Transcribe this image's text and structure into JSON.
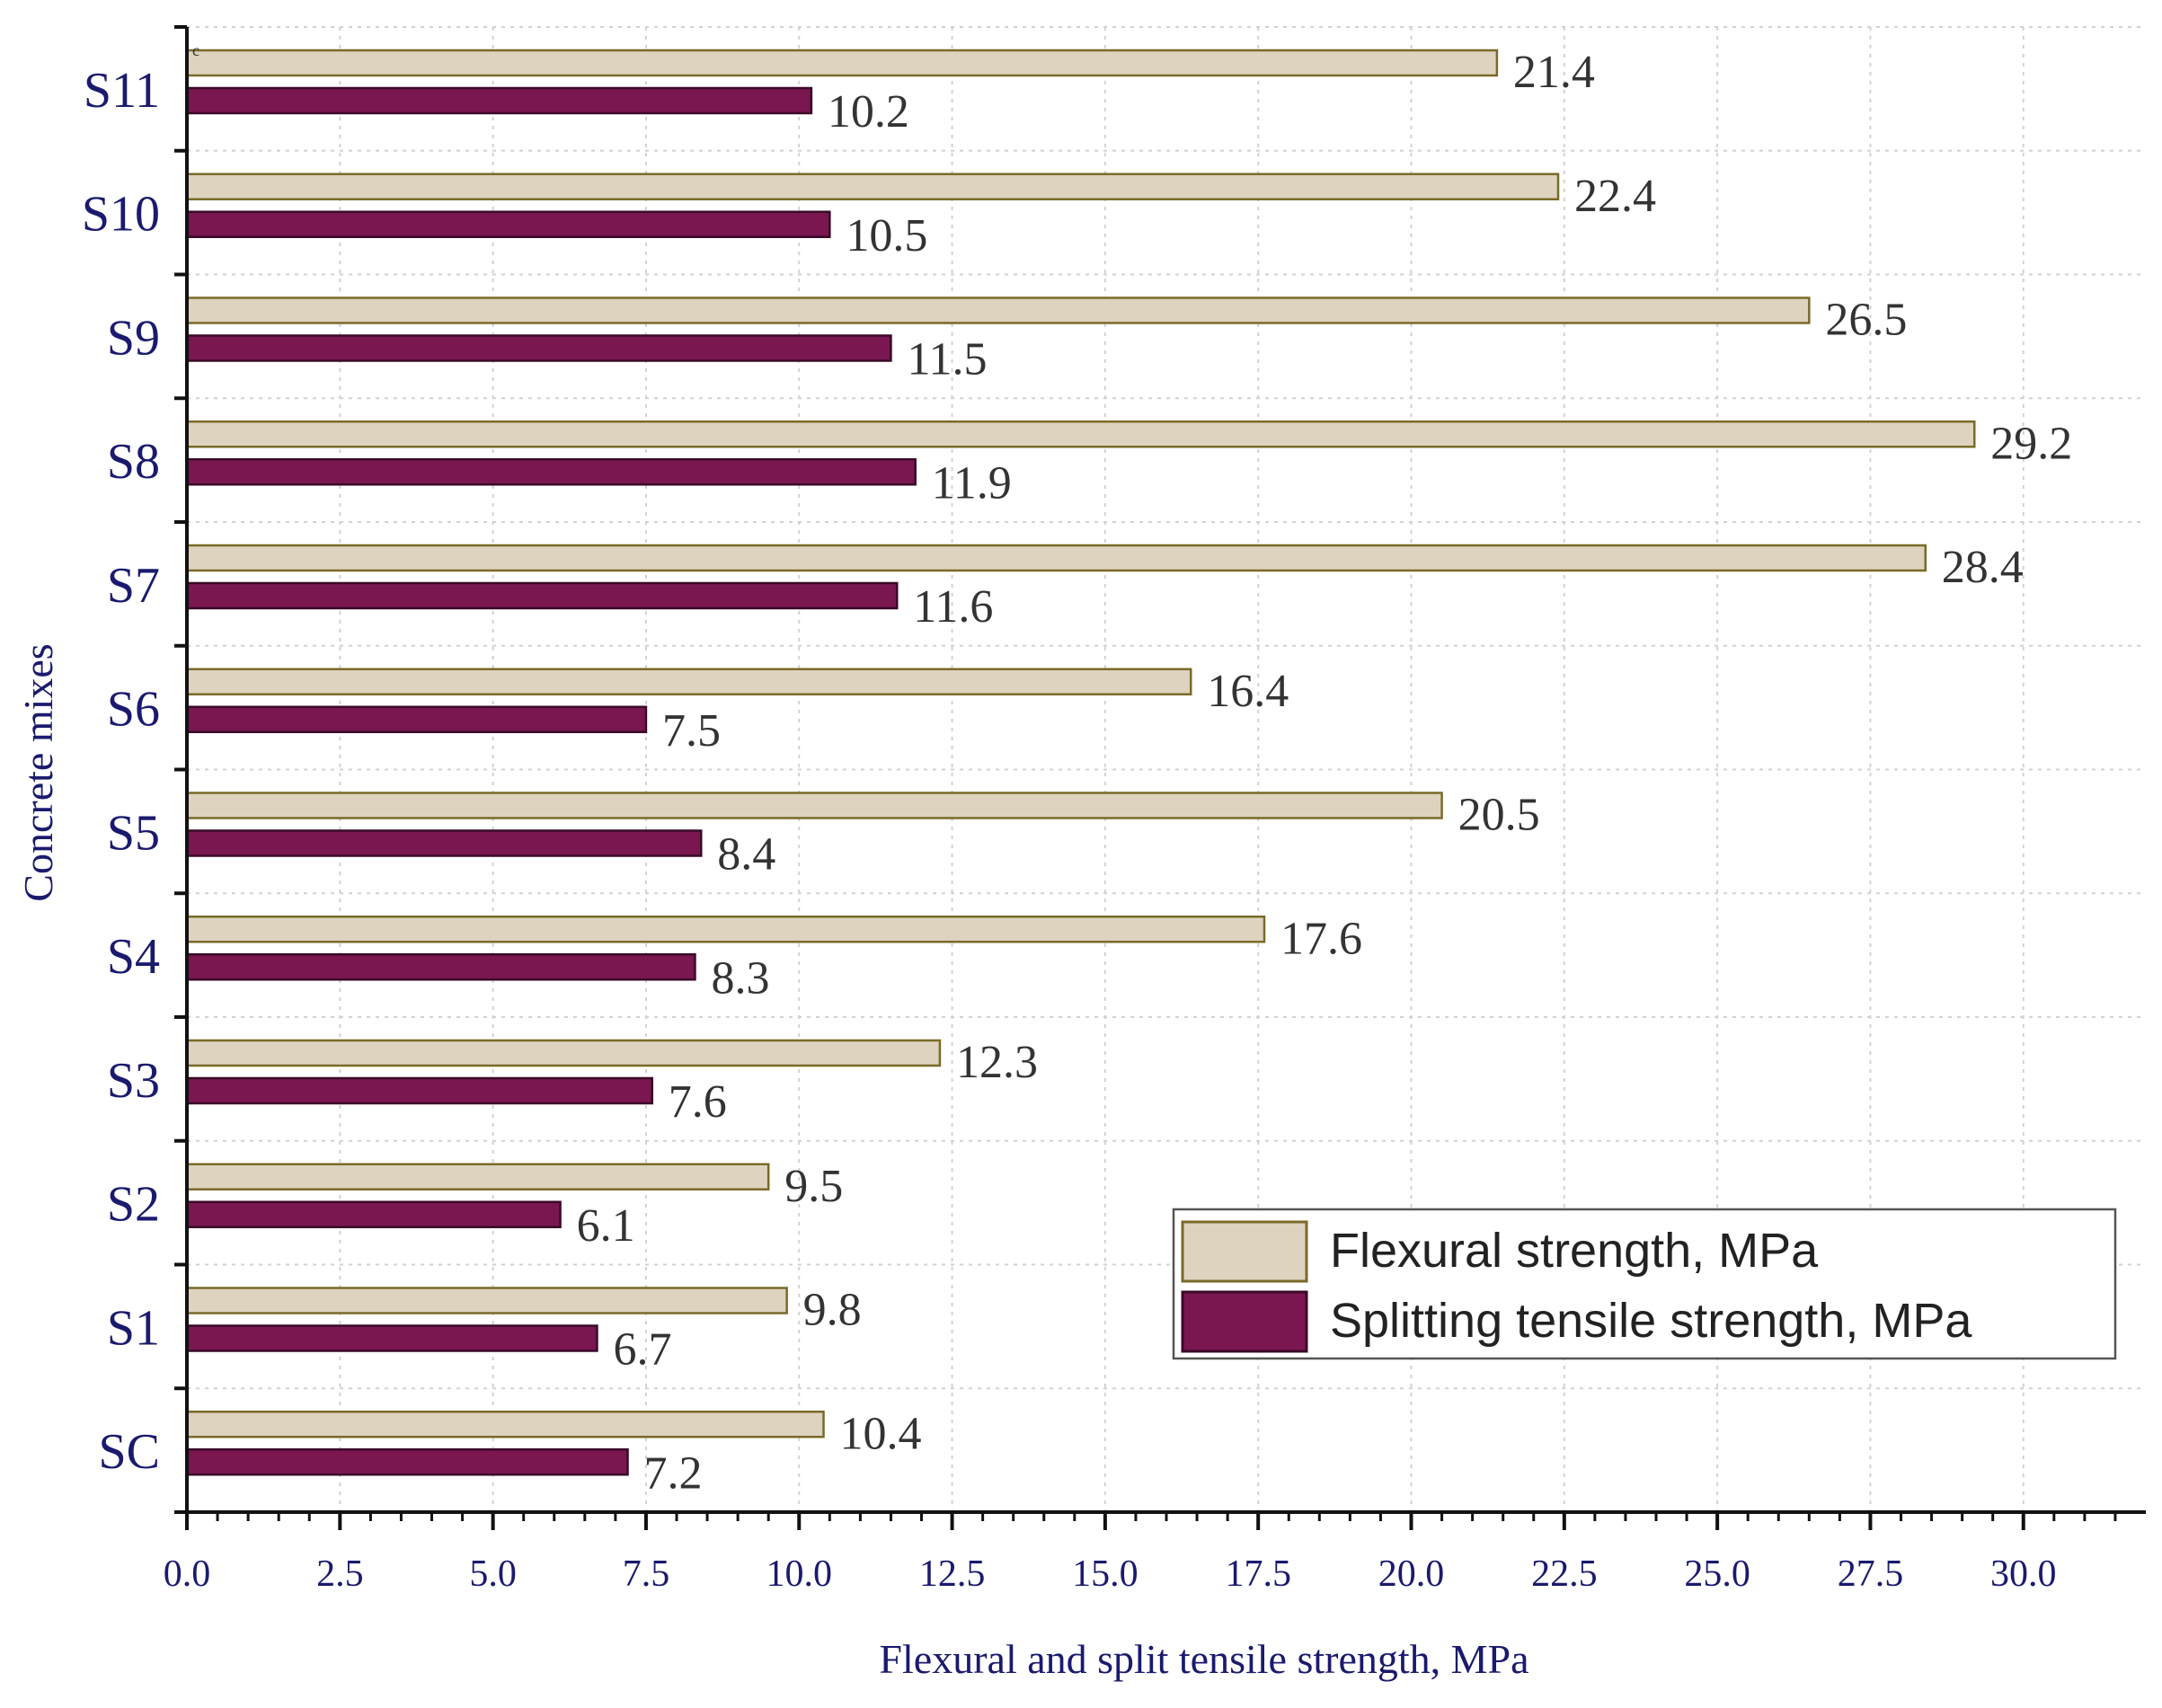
{
  "chart_data": {
    "type": "bar",
    "orientation": "horizontal",
    "title": "",
    "corner_mark": "c",
    "xlabel": "Flexural and split tensile strength, MPa",
    "ylabel": "Concrete mixes",
    "xlim": [
      0,
      32
    ],
    "x_ticks": [
      "0.0",
      "2.5",
      "5.0",
      "7.5",
      "10.0",
      "12.5",
      "15.0",
      "17.5",
      "20.0",
      "22.5",
      "25.0",
      "27.5",
      "30.0"
    ],
    "categories": [
      "SC",
      "S1",
      "S2",
      "S3",
      "S4",
      "S5",
      "S6",
      "S7",
      "S8",
      "S9",
      "S10",
      "S11"
    ],
    "series": [
      {
        "name": "Flexural strength, MPa",
        "color": "#ddd3bf",
        "stroke": "#7a6a28",
        "values": [
          10.4,
          9.8,
          9.5,
          12.3,
          17.6,
          20.5,
          16.4,
          28.4,
          29.2,
          26.5,
          22.4,
          21.4
        ],
        "labels": [
          "10.4",
          "9.8",
          "9.5",
          "12.3",
          "17.6",
          "20.5",
          "16.4",
          "28.4",
          "29.2",
          "26.5",
          "22.4",
          "21.4"
        ]
      },
      {
        "name": "Splitting tensile strength, MPa",
        "color": "#7a1650",
        "stroke": "#3a0a28",
        "values": [
          7.2,
          6.7,
          6.1,
          7.6,
          8.3,
          8.4,
          7.5,
          11.6,
          11.9,
          11.5,
          10.5,
          10.2
        ],
        "labels": [
          "7.2",
          "6.7",
          "6.1",
          "7.6",
          "8.3",
          "8.4",
          "7.5",
          "11.6",
          "11.9",
          "11.5",
          "10.5",
          "10.2"
        ]
      }
    ],
    "grid": true,
    "legend": {
      "placement": "bottom-right"
    }
  }
}
